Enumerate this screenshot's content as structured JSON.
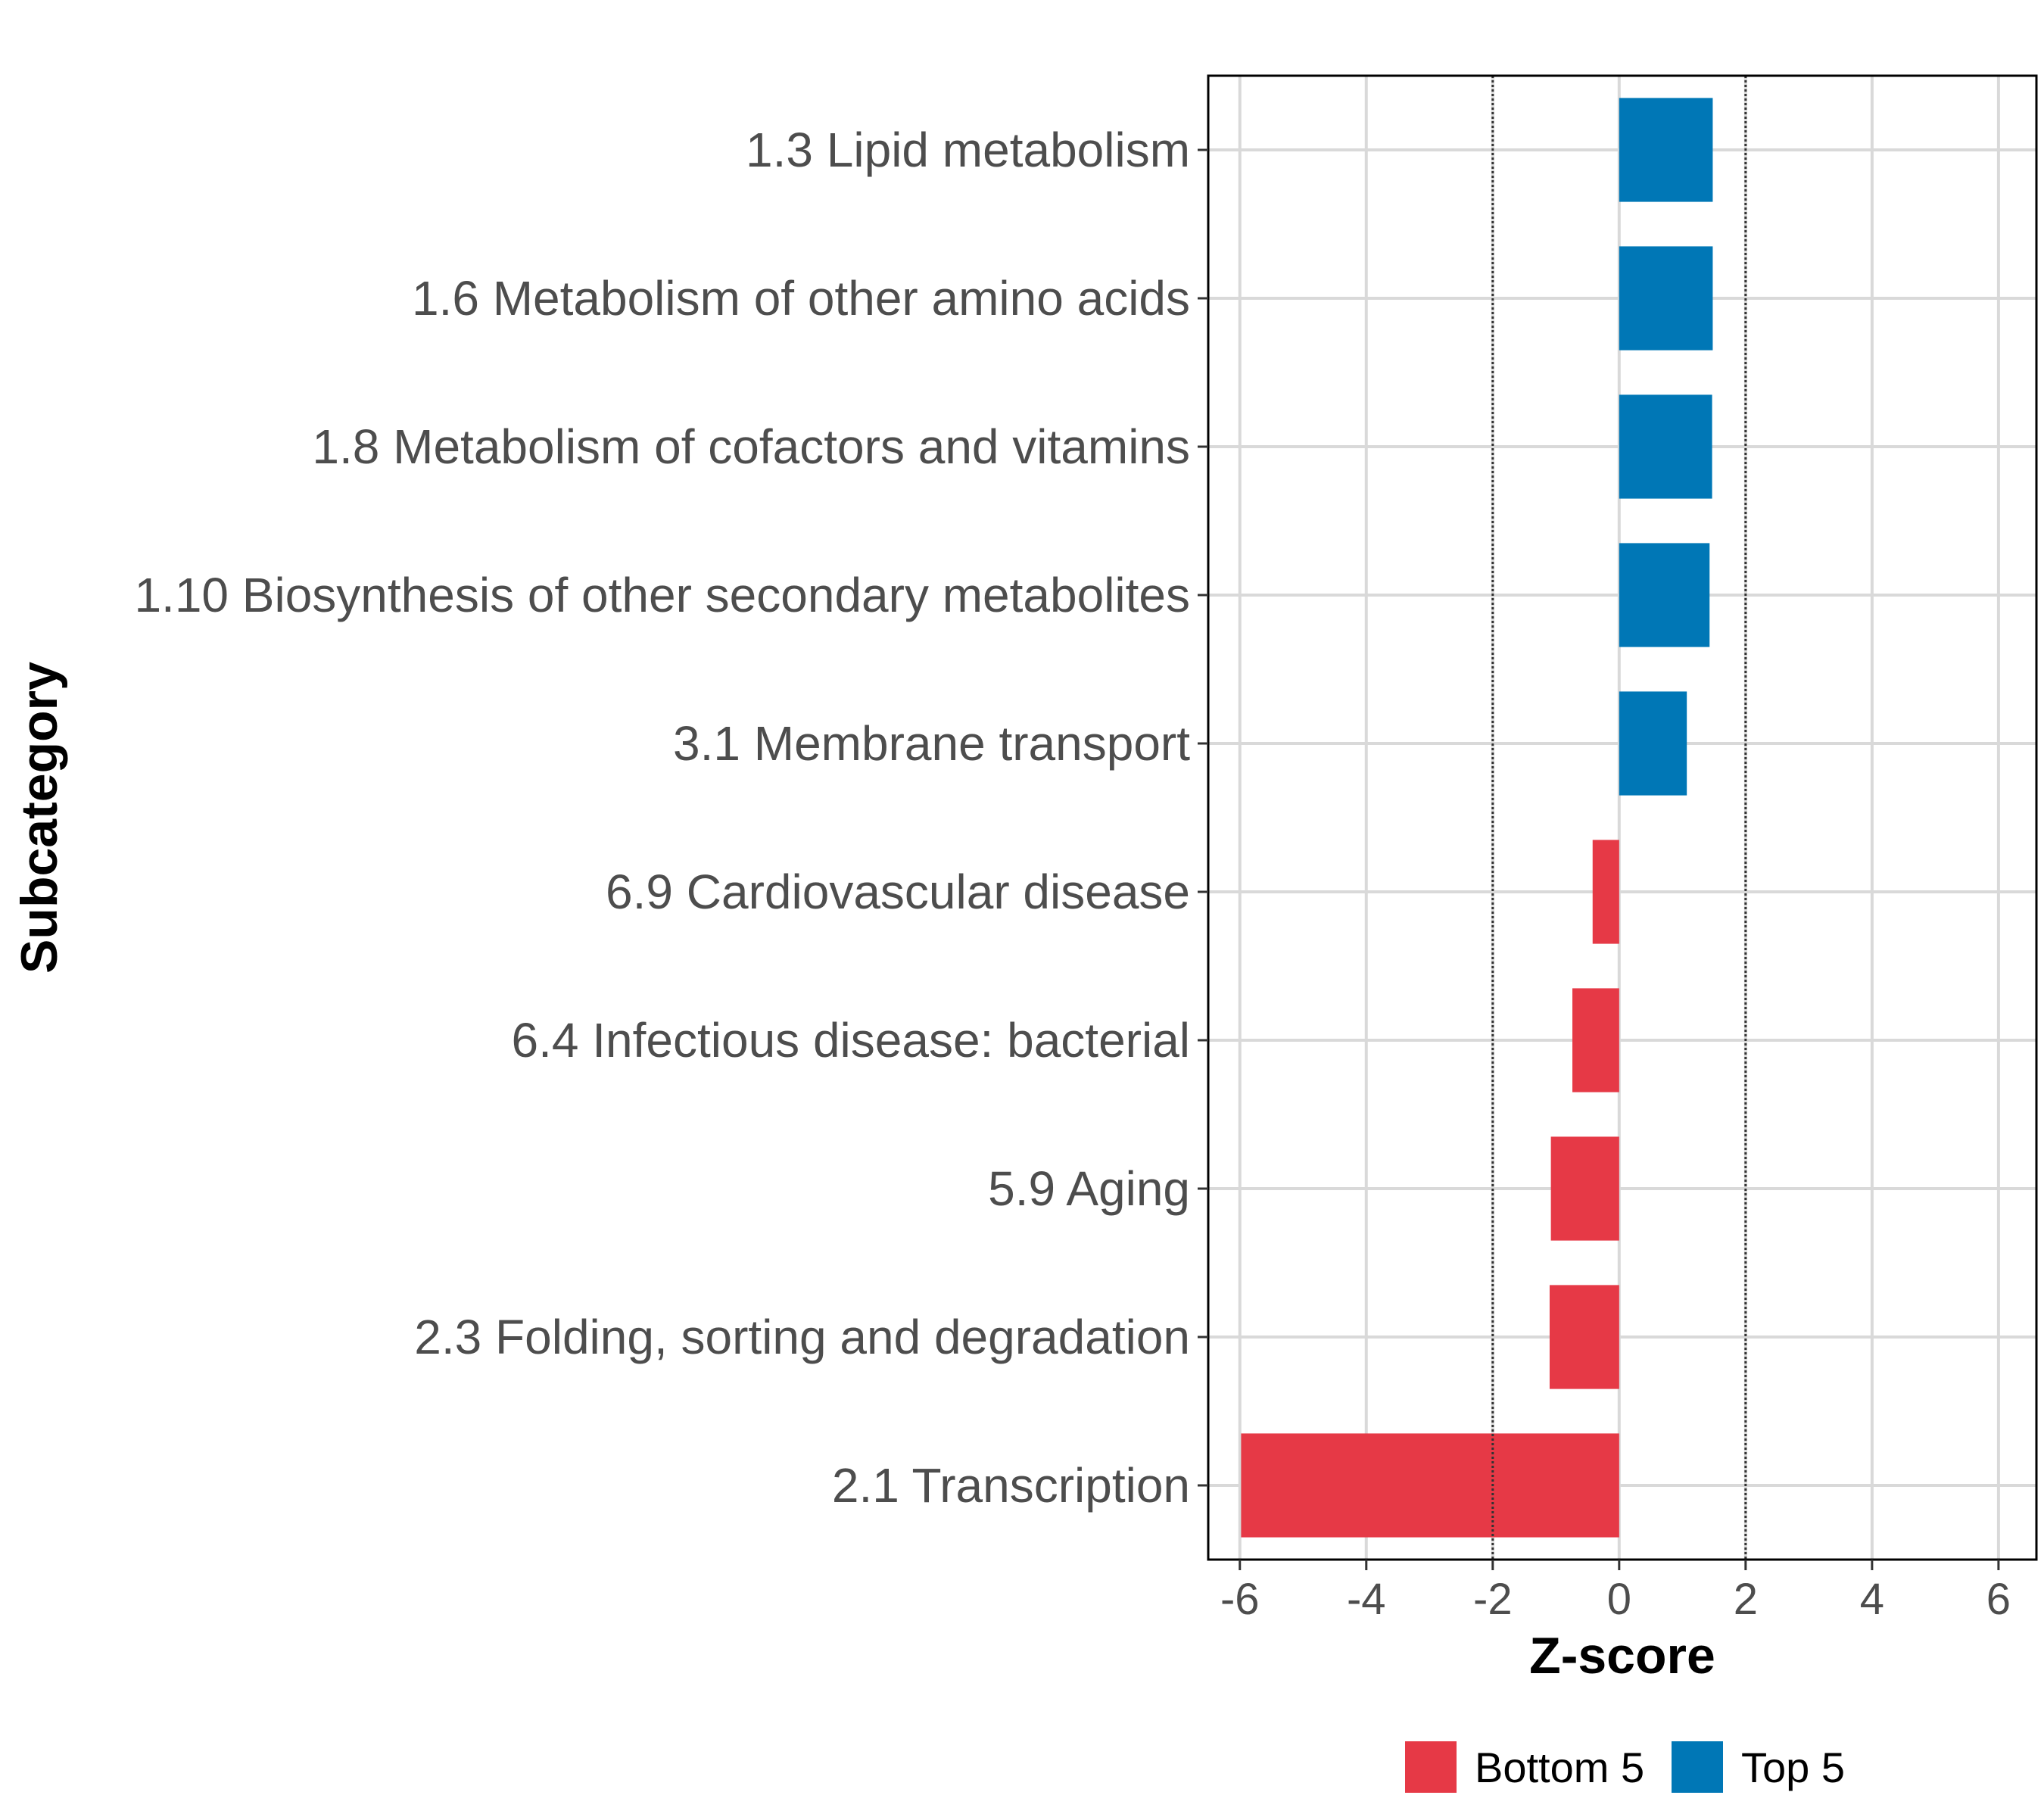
{
  "chart_data": {
    "type": "bar",
    "orientation": "horizontal",
    "categories": [
      "1.3 Lipid metabolism",
      "1.6 Metabolism of other amino acids",
      "1.8 Metabolism of cofactors and vitamins",
      "1.10 Biosynthesis of other secondary metabolites",
      "3.1 Membrane transport",
      "6.9 Cardiovascular disease",
      "6.4 Infectious disease: bacterial",
      "5.9 Aging",
      "2.3 Folding, sorting and degradation",
      "2.1 Transcription"
    ],
    "values": [
      1.48,
      1.48,
      1.47,
      1.43,
      1.07,
      -0.42,
      -0.74,
      -1.08,
      -1.1,
      -5.98
    ],
    "groups": [
      "Top 5",
      "Top 5",
      "Top 5",
      "Top 5",
      "Top 5",
      "Bottom 5",
      "Bottom 5",
      "Bottom 5",
      "Bottom 5",
      "Bottom 5"
    ],
    "xlabel": "Z-score",
    "ylabel": "Subcategory",
    "xlim": [
      -6.5,
      6.6
    ],
    "xticks": [
      -6,
      -4,
      -2,
      0,
      2,
      4,
      6
    ],
    "xtick_labels": [
      "-6",
      "-4",
      "-2",
      "0",
      "2",
      "4",
      "6"
    ],
    "reference_lines": [
      -2,
      2
    ],
    "grid": true,
    "legend": {
      "position": "bottom",
      "entries": [
        {
          "label": "Bottom 5",
          "color": "#E63946"
        },
        {
          "label": "Top 5",
          "color": "#0077B6"
        }
      ]
    }
  }
}
